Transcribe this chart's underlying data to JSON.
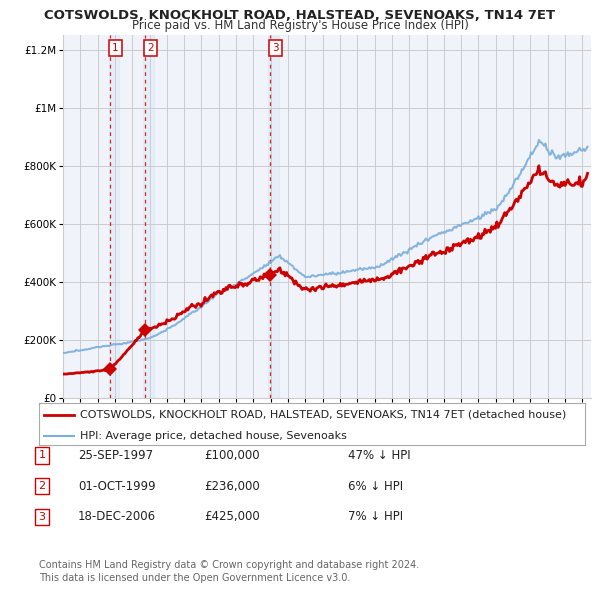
{
  "title": "COTSWOLDS, KNOCKHOLT ROAD, HALSTEAD, SEVENOAKS, TN14 7ET",
  "subtitle": "Price paid vs. HM Land Registry's House Price Index (HPI)",
  "xlim_start": 1995.0,
  "xlim_end": 2025.5,
  "ylim": [
    0,
    1250000
  ],
  "background_color": "#ffffff",
  "plot_bg_color": "#f0f4fa",
  "grid_color": "#cccccc",
  "sales": [
    {
      "year": 1997.73,
      "price": 100000,
      "label": "1"
    },
    {
      "year": 1999.75,
      "price": 236000,
      "label": "2"
    },
    {
      "year": 2006.97,
      "price": 425000,
      "label": "3"
    }
  ],
  "legend_line1_color": "#cc0000",
  "legend_line1_lw": 2.0,
  "legend_line1_label": "COTSWOLDS, KNOCKHOLT ROAD, HALSTEAD, SEVENOAKS, TN14 7ET (detached house)",
  "legend_line2_color": "#7aaedc",
  "legend_line2_lw": 1.5,
  "legend_line2_label": "HPI: Average price, detached house, Sevenoaks",
  "table_rows": [
    {
      "num": "1",
      "date": "25-SEP-1997",
      "price": "£100,000",
      "hpi": "47% ↓ HPI"
    },
    {
      "num": "2",
      "date": "01-OCT-1999",
      "price": "£236,000",
      "hpi": "6% ↓ HPI"
    },
    {
      "num": "3",
      "date": "18-DEC-2006",
      "price": "£425,000",
      "hpi": "7% ↓ HPI"
    }
  ],
  "footnote": "Contains HM Land Registry data © Crown copyright and database right 2024.\nThis data is licensed under the Open Government Licence v3.0.",
  "title_fontsize": 9.5,
  "subtitle_fontsize": 8.5,
  "tick_fontsize": 7.5,
  "legend_fontsize": 8,
  "table_fontsize": 8.5,
  "footnote_fontsize": 7
}
